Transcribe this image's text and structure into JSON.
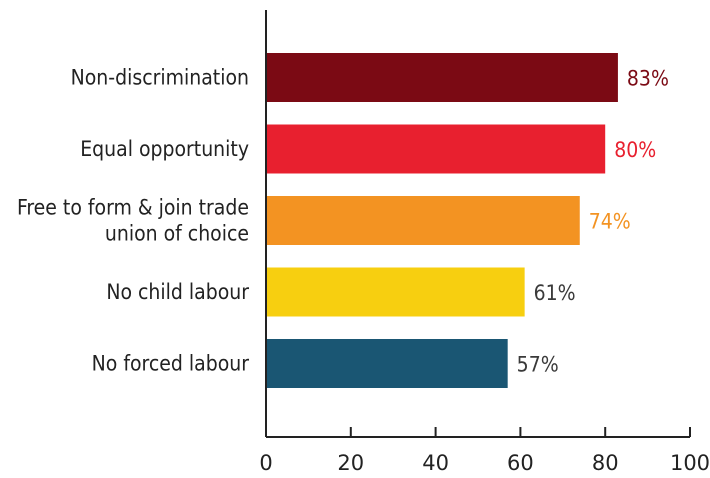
{
  "chart_data": {
    "type": "bar",
    "orientation": "horizontal",
    "categories": [
      [
        "Non-discrimination"
      ],
      [
        "Equal opportunity"
      ],
      [
        "Free to form & join trade",
        "union of choice"
      ],
      [
        "No child labour"
      ],
      [
        "No forced labour"
      ]
    ],
    "values": [
      83,
      80,
      74,
      61,
      57
    ],
    "value_labels": [
      "83%",
      "80%",
      "74%",
      "61%",
      "57%"
    ],
    "bar_colors": [
      "#7b0a14",
      "#e8202f",
      "#f39322",
      "#f7cf10",
      "#1a5673"
    ],
    "xlim": [
      0,
      100
    ],
    "xticks": [
      0,
      20,
      40,
      60,
      80,
      100
    ],
    "title": "",
    "xlabel": "",
    "ylabel": "",
    "grid": false,
    "legend": "none"
  }
}
